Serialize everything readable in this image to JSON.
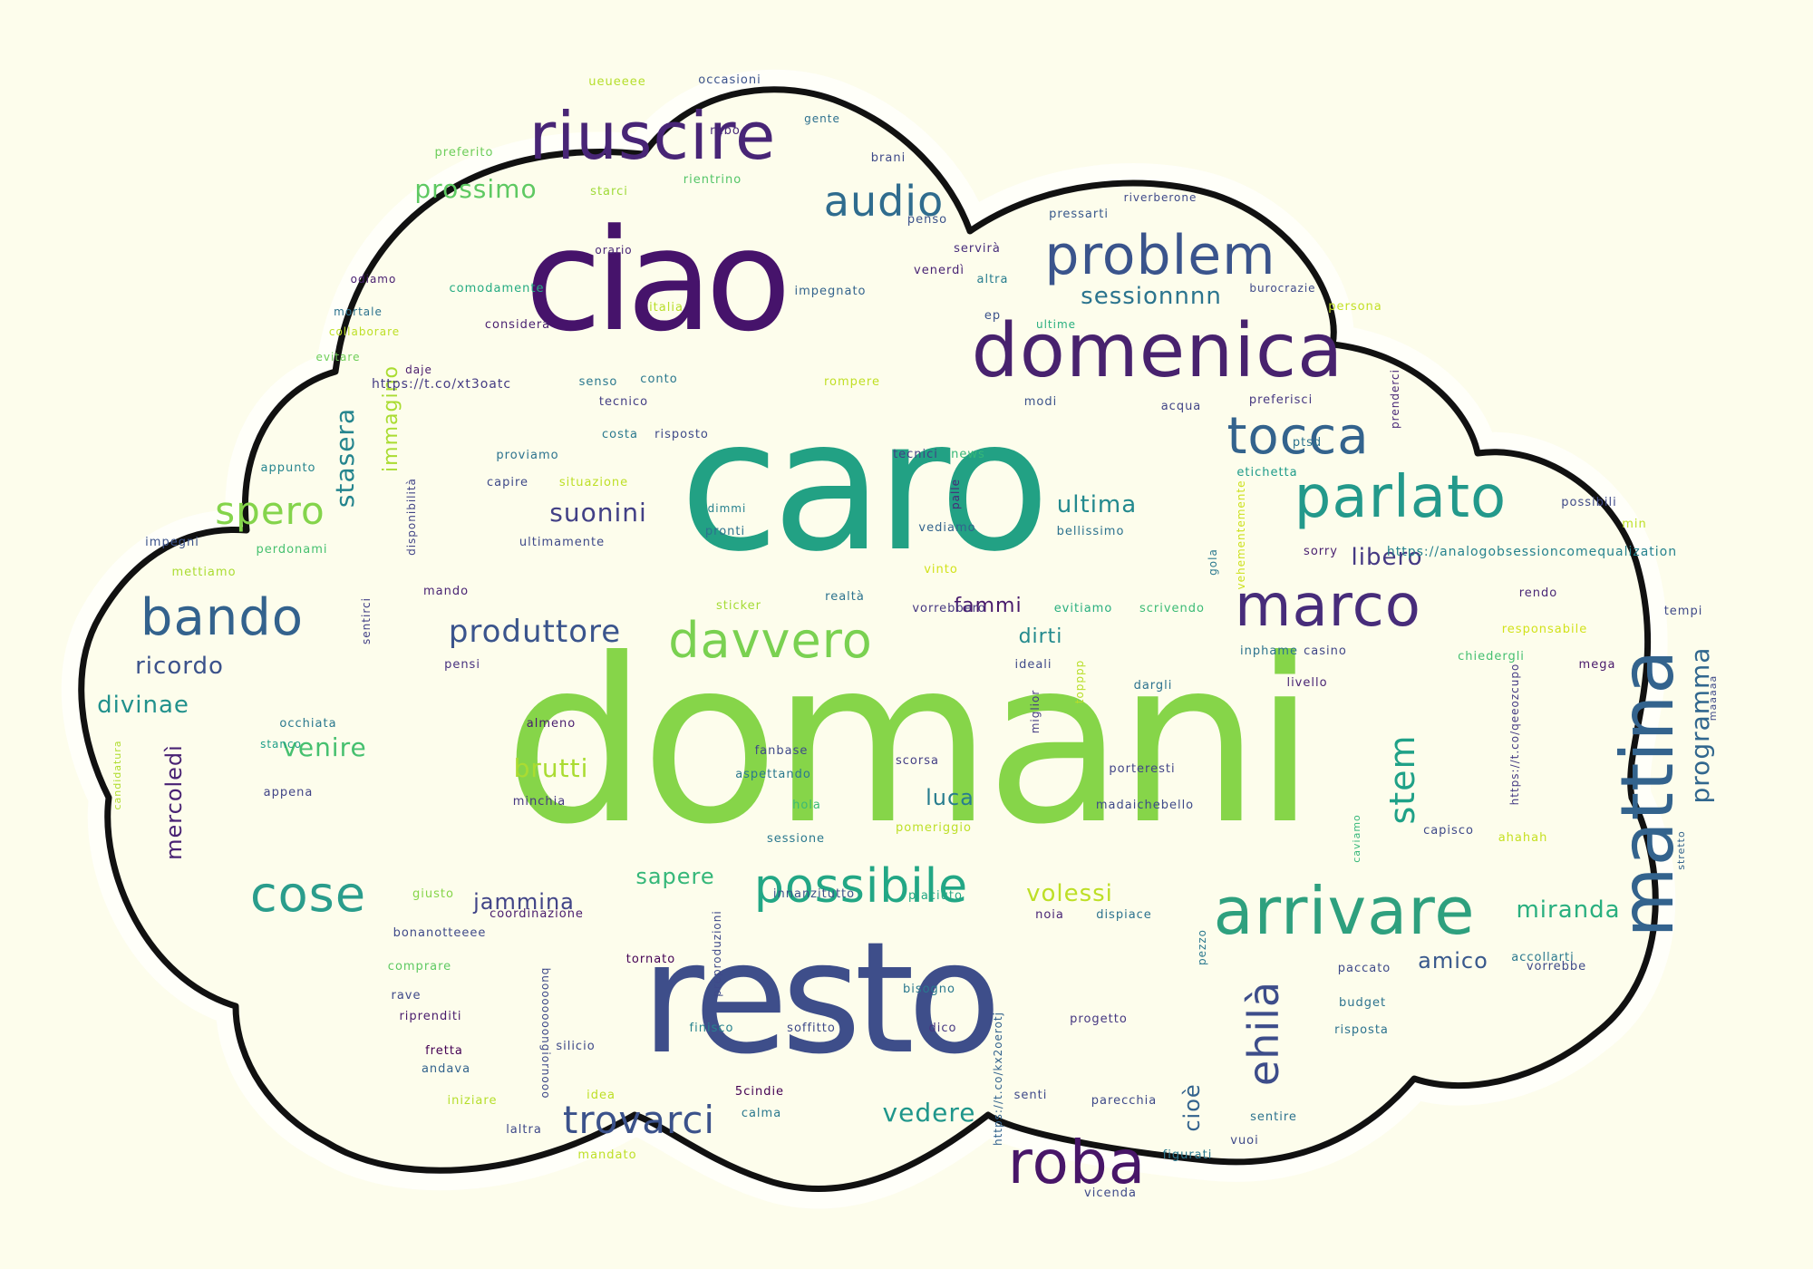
{
  "palette": {
    "dark_purple": "#4b1a69",
    "purple": "#4b2c7a",
    "indigo": "#3d4c8a",
    "blue": "#33628d",
    "teal": "#2a788e",
    "sea": "#21918c",
    "green_teal": "#22a884",
    "green": "#44bf70",
    "lime": "#7ad151",
    "bright_lime": "#8dd64a",
    "yellow": "#bddf26",
    "cloud_fill": "#fdfdec",
    "cloud_border": "#111111",
    "background": "#fdfdec"
  },
  "words": [
    {
      "text": "domani",
      "color": "#86d549"
    },
    {
      "text": "caro",
      "color": "#22a184"
    },
    {
      "text": "resto",
      "color": "#3e4e8a"
    },
    {
      "text": "ciao",
      "color": "#46136b"
    },
    {
      "text": "domenica",
      "color": "#48226e"
    },
    {
      "text": "riuscire",
      "color": "#482576"
    },
    {
      "text": "problem",
      "color": "#3a548c"
    },
    {
      "text": "mattina",
      "color": "#33638d"
    },
    {
      "text": "arrivare",
      "color": "#2ea07e"
    },
    {
      "text": "marco",
      "color": "#472c7a"
    },
    {
      "text": "parlato",
      "color": "#23998b"
    },
    {
      "text": "roba",
      "color": "#481668"
    },
    {
      "text": "bando",
      "color": "#33628d"
    },
    {
      "text": "tocca",
      "color": "#33638d"
    },
    {
      "text": "davvero",
      "color": "#7ad151"
    },
    {
      "text": "possibile",
      "color": "#22a785"
    },
    {
      "text": "cose",
      "color": "#2a9d8c"
    },
    {
      "text": "audio",
      "color": "#2f6c8e"
    },
    {
      "text": "trovarci",
      "color": "#3b528b"
    },
    {
      "text": "spero",
      "color": "#84d44b"
    },
    {
      "text": "ehilà",
      "color": "#3d4d8a"
    },
    {
      "text": "produttore",
      "color": "#3a548c"
    },
    {
      "text": "stem",
      "color": "#1fa187"
    },
    {
      "text": "programma",
      "color": "#31678e"
    },
    {
      "text": "sessionnnn",
      "color": "#2b748e"
    },
    {
      "text": "suonini",
      "color": "#424086"
    },
    {
      "text": "prossimo",
      "color": "#5ec962"
    },
    {
      "text": "miranda",
      "color": "#29af7f"
    },
    {
      "text": "ricordo",
      "color": "#3b528b"
    },
    {
      "text": "divinae",
      "color": "#21918c"
    },
    {
      "text": "venire",
      "color": "#46c06f"
    },
    {
      "text": "brutti",
      "color": "#aadc32"
    },
    {
      "text": "jammina",
      "color": "#414487"
    },
    {
      "text": "sapere",
      "color": "#35b779"
    },
    {
      "text": "volessi",
      "color": "#bddf26"
    },
    {
      "text": "ultima",
      "color": "#23898e"
    },
    {
      "text": "libero",
      "color": "#443983"
    },
    {
      "text": "stasera",
      "color": "#25858e"
    },
    {
      "text": "immagino",
      "color": "#aadc32"
    },
    {
      "text": "mercoledì",
      "color": "#482173"
    },
    {
      "text": "luca",
      "color": "#287d8e"
    },
    {
      "text": "amico",
      "color": "#38588c"
    },
    {
      "text": "cioè",
      "color": "#33638d"
    },
    {
      "text": "vedere",
      "color": "#1f968b"
    },
    {
      "text": "dirti",
      "color": "#238a8d"
    },
    {
      "text": "fammi",
      "color": "#481a6c"
    },
    {
      "text": "https://analogobsessioncomequalization",
      "color": "#26828e"
    },
    {
      "text": "occasioni",
      "color": "#3b528b"
    },
    {
      "text": "ueueeee",
      "color": "#b5de2b"
    },
    {
      "text": "rubo",
      "color": "#482979"
    },
    {
      "text": "gente",
      "color": "#2d708e"
    },
    {
      "text": "preferito",
      "color": "#6ccd5a"
    },
    {
      "text": "brani",
      "color": "#3e4989"
    },
    {
      "text": "starci",
      "color": "#a0da39"
    },
    {
      "text": "rientrino",
      "color": "#54c568"
    },
    {
      "text": "penso",
      "color": "#3b528b"
    },
    {
      "text": "pressarti",
      "color": "#38588c"
    },
    {
      "text": "riverberone",
      "color": "#3e4989"
    },
    {
      "text": "orario",
      "color": "#482677"
    },
    {
      "text": "servirà",
      "color": "#472d7b"
    },
    {
      "text": "odiamo",
      "color": "#481f70"
    },
    {
      "text": "comodamente",
      "color": "#25ab82"
    },
    {
      "text": "impegnato",
      "color": "#33638d"
    },
    {
      "text": "venerdì",
      "color": "#482374"
    },
    {
      "text": "altra",
      "color": "#287d8e"
    },
    {
      "text": "burocrazie",
      "color": "#3e4989"
    },
    {
      "text": "considera",
      "color": "#481f70"
    },
    {
      "text": "italia",
      "color": "#b8de29"
    },
    {
      "text": "ep",
      "color": "#3b528b"
    },
    {
      "text": "persona",
      "color": "#c2df23"
    },
    {
      "text": "mortale",
      "color": "#2c728e"
    },
    {
      "text": "collaborare",
      "color": "#bddf26"
    },
    {
      "text": "ultime",
      "color": "#29af7f"
    },
    {
      "text": "evitare",
      "color": "#6ece58"
    },
    {
      "text": "daje",
      "color": "#481a6c"
    },
    {
      "text": "https://t.co/xt3oatc",
      "color": "#443b84"
    },
    {
      "text": "senso",
      "color": "#2a788e"
    },
    {
      "text": "conto",
      "color": "#2a788e"
    },
    {
      "text": "rompere",
      "color": "#c0df25"
    },
    {
      "text": "prenderci",
      "color": "#482677"
    },
    {
      "text": "tecnico",
      "color": "#433e85"
    },
    {
      "text": "preferisci",
      "color": "#453781"
    },
    {
      "text": "modi",
      "color": "#3b528b"
    },
    {
      "text": "acqua",
      "color": "#414487"
    },
    {
      "text": "costa",
      "color": "#2a788e"
    },
    {
      "text": "risposto",
      "color": "#3e4989"
    },
    {
      "text": "ptsd",
      "color": "#2c728e"
    },
    {
      "text": "proviamo",
      "color": "#2c728e"
    },
    {
      "text": "tecnici",
      "color": "#423f85"
    },
    {
      "text": "news",
      "color": "#35b779"
    },
    {
      "text": "etichetta",
      "color": "#1e9b8a"
    },
    {
      "text": "appunto",
      "color": "#25848e"
    },
    {
      "text": "capire",
      "color": "#3e4989"
    },
    {
      "text": "situazione",
      "color": "#bddf26"
    },
    {
      "text": "palle",
      "color": "#482878"
    },
    {
      "text": "disponibilità",
      "color": "#414487"
    },
    {
      "text": "dimmi",
      "color": "#26818e"
    },
    {
      "text": "possibili",
      "color": "#3e4989"
    },
    {
      "text": "vehementemente",
      "color": "#cde11d"
    },
    {
      "text": "min",
      "color": "#bddf26"
    },
    {
      "text": "impegni",
      "color": "#3b528b"
    },
    {
      "text": "pronti",
      "color": "#2c728e"
    },
    {
      "text": "vediamo",
      "color": "#33638d"
    },
    {
      "text": "bellissimo",
      "color": "#2c728e"
    },
    {
      "text": "sorry",
      "color": "#481f70"
    },
    {
      "text": "perdonami",
      "color": "#46c06f"
    },
    {
      "text": "ultimamente",
      "color": "#3e4989"
    },
    {
      "text": "gola",
      "color": "#2a788e"
    },
    {
      "text": "mettiamo",
      "color": "#aadc32"
    },
    {
      "text": "vinto",
      "color": "#d2e21b"
    },
    {
      "text": "mando",
      "color": "#482374"
    },
    {
      "text": "realtà",
      "color": "#2c728e"
    },
    {
      "text": "evitiamo",
      "color": "#29af7f"
    },
    {
      "text": "scrivendo",
      "color": "#3bbb75"
    },
    {
      "text": "rendo",
      "color": "#482576"
    },
    {
      "text": "tempi",
      "color": "#3e4989"
    },
    {
      "text": "sentirci",
      "color": "#424086"
    },
    {
      "text": "sticker",
      "color": "#a5db36"
    },
    {
      "text": "responsabile",
      "color": "#d2e21b"
    },
    {
      "text": "vorrebbero",
      "color": "#453781"
    },
    {
      "text": "pensi",
      "color": "#46307e"
    },
    {
      "text": "ideali",
      "color": "#3e4989"
    },
    {
      "text": "inphame",
      "color": "#2c728e"
    },
    {
      "text": "casino",
      "color": "#404688"
    },
    {
      "text": "chiedergli",
      "color": "#44bf70"
    },
    {
      "text": "mega",
      "color": "#48186a"
    },
    {
      "text": "topppp",
      "color": "#b8de29"
    },
    {
      "text": "dargli",
      "color": "#2c728e"
    },
    {
      "text": "livello",
      "color": "#482374"
    },
    {
      "text": "occhiata",
      "color": "#2a788e"
    },
    {
      "text": "miglior",
      "color": "#443a83"
    },
    {
      "text": "https://t.co/qeeozcupo",
      "color": "#443a83"
    },
    {
      "text": "maaaaa",
      "color": "#3e4989"
    },
    {
      "text": "candidatura",
      "color": "#b0dd2f"
    },
    {
      "text": "almeno",
      "color": "#481c6e"
    },
    {
      "text": "fanbase",
      "color": "#3e4989"
    },
    {
      "text": "stanco",
      "color": "#1f9e89"
    },
    {
      "text": "aspettando",
      "color": "#2a788e"
    },
    {
      "text": "scorsa",
      "color": "#433e85"
    },
    {
      "text": "porteresti",
      "color": "#414487"
    },
    {
      "text": "appena",
      "color": "#414487"
    },
    {
      "text": "minchia",
      "color": "#453781"
    },
    {
      "text": "hola",
      "color": "#3aba76"
    },
    {
      "text": "pomeriggio",
      "color": "#bddf26"
    },
    {
      "text": "madaichebello",
      "color": "#3e4989"
    },
    {
      "text": "sessione",
      "color": "#2a788e"
    },
    {
      "text": "caviamo",
      "color": "#35b779"
    },
    {
      "text": "capisco",
      "color": "#3e4989"
    },
    {
      "text": "ahahah",
      "color": "#c5e021"
    },
    {
      "text": "stretto",
      "color": "#33638d"
    },
    {
      "text": "giusto",
      "color": "#86d549"
    },
    {
      "text": "coordinazione",
      "color": "#481a6c"
    },
    {
      "text": "innanzitutto",
      "color": "#3b528b"
    },
    {
      "text": "piaciuto",
      "color": "#22a884"
    },
    {
      "text": "noia",
      "color": "#482374"
    },
    {
      "text": "dispiace",
      "color": "#2c728e"
    },
    {
      "text": "bonanotteeee",
      "color": "#3e4989"
    },
    {
      "text": "vorrebbe",
      "color": "#3e4989"
    },
    {
      "text": "accollarti",
      "color": "#2a788e"
    },
    {
      "text": "comprare",
      "color": "#5ec962"
    },
    {
      "text": "preproduzioni",
      "color": "#3e4989"
    },
    {
      "text": "pezzo",
      "color": "#2a788e"
    },
    {
      "text": "paccato",
      "color": "#3e4989"
    },
    {
      "text": "tornato",
      "color": "#440154"
    },
    {
      "text": "buooooooongiornooo",
      "color": "#3e4989"
    },
    {
      "text": "bisogno",
      "color": "#2a788e"
    },
    {
      "text": "rave",
      "color": "#3e4989"
    },
    {
      "text": "budget",
      "color": "#2c728e"
    },
    {
      "text": "riprenditi",
      "color": "#481a6c"
    },
    {
      "text": "finisco",
      "color": "#26828e"
    },
    {
      "text": "soffitto",
      "color": "#3e4989"
    },
    {
      "text": "dico",
      "color": "#453781"
    },
    {
      "text": "progetto",
      "color": "#453781"
    },
    {
      "text": "risposta",
      "color": "#2c728e"
    },
    {
      "text": "fretta",
      "color": "#440154"
    },
    {
      "text": "silicio",
      "color": "#3e4989"
    },
    {
      "text": "andava",
      "color": "#33638d"
    },
    {
      "text": "https://t.co/kx2oerotj",
      "color": "#33638d"
    },
    {
      "text": "iniziare",
      "color": "#b5de2b"
    },
    {
      "text": "idea",
      "color": "#bddf26"
    },
    {
      "text": "5cindie",
      "color": "#440154"
    },
    {
      "text": "senti",
      "color": "#3e4989"
    },
    {
      "text": "parecchia",
      "color": "#3e4989"
    },
    {
      "text": "sentire",
      "color": "#2c728e"
    },
    {
      "text": "calma",
      "color": "#2a788e"
    },
    {
      "text": "laltra",
      "color": "#3e4989"
    },
    {
      "text": "mandato",
      "color": "#bddf26"
    },
    {
      "text": "figurati",
      "color": "#2a788e"
    },
    {
      "text": "vuoi",
      "color": "#3e4989"
    },
    {
      "text": "vicenda",
      "color": "#3e4989"
    }
  ]
}
